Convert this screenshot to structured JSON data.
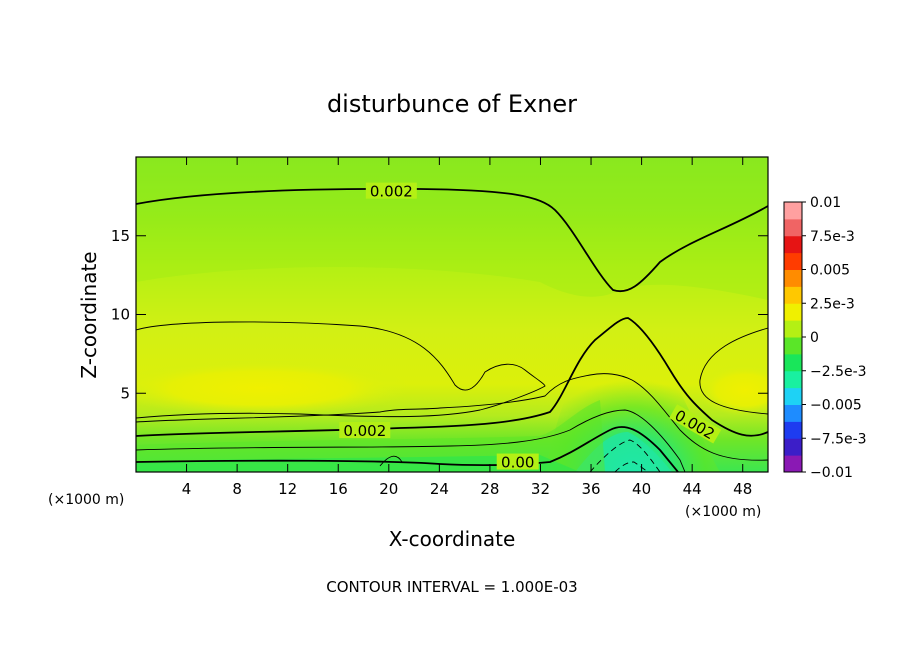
{
  "chart_data": {
    "type": "heatmap",
    "title": "disturbunce of Exner",
    "xlabel": "X-coordinate",
    "ylabel": "Z-coordinate",
    "x_unit": "(×1000 m)",
    "x_unit_right": "(×1000 m)",
    "xlim": [
      0,
      50
    ],
    "ylim": [
      0,
      20
    ],
    "x_ticks": [
      4,
      8,
      12,
      16,
      20,
      24,
      28,
      32,
      36,
      40,
      44,
      48
    ],
    "y_ticks": [
      5,
      10,
      15
    ],
    "footer": "CONTOUR INTERVAL = 1.000E-03",
    "colorbar": {
      "range": [
        -0.01,
        0.01
      ],
      "labels": [
        {
          "value": 0.01,
          "text": "0.01"
        },
        {
          "value": 0.0075,
          "text": "7.5e-3"
        },
        {
          "value": 0.005,
          "text": "0.005"
        },
        {
          "value": 0.0025,
          "text": "2.5e-3"
        },
        {
          "value": 0,
          "text": "0"
        },
        {
          "value": -0.0025,
          "text": "−2.5e-3"
        },
        {
          "value": -0.005,
          "text": "−0.005"
        },
        {
          "value": -0.0075,
          "text": "−7.5e-3"
        },
        {
          "value": -0.01,
          "text": "−0.01"
        }
      ],
      "colors": [
        "#8a19b4",
        "#3c1ec8",
        "#1e3cf0",
        "#1e8cff",
        "#1ed2f5",
        "#19f0a0",
        "#19e65a",
        "#5ae628",
        "#b4f014",
        "#f0f000",
        "#ffc800",
        "#ff8c00",
        "#ff3c00",
        "#e61414",
        "#f06464",
        "#ffa0a0"
      ]
    },
    "contour_labels": [
      {
        "text": "0.002",
        "x": 20.2,
        "z": 17.8,
        "rot": 0
      },
      {
        "text": "0.002",
        "x": 18.1,
        "z": 2.6,
        "rot": 0
      },
      {
        "text": "0.00",
        "x": 30.2,
        "z": 0.6,
        "rot": 0
      },
      {
        "text": "0.002",
        "x": 44.2,
        "z": 3.0,
        "rot": 30
      }
    ]
  }
}
